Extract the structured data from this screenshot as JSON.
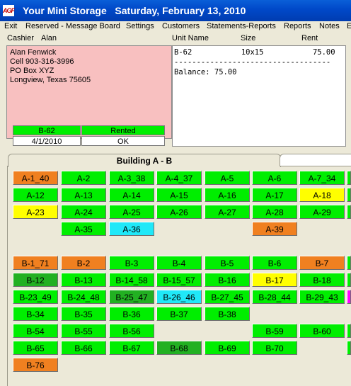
{
  "window": {
    "icon_text": "AGF",
    "title": "Your Mini Storage   Saturday, February 13, 2010"
  },
  "menu": [
    "Exit",
    "Reserved - Message Board",
    "Settings",
    "Customers",
    "Statements-Reports",
    "Reports",
    "Notes",
    "E"
  ],
  "header": {
    "cashier_label": "Cashier",
    "cashier_name": "Alan",
    "unit_name_label": "Unit Name",
    "size_label": "Size",
    "rent_label": "Rent"
  },
  "customer": {
    "name": "Alan Fenwick",
    "phone": "Cell  903-316-3996",
    "address1": "PO Box XYZ",
    "address2": "Longview, Texas  75605"
  },
  "status": {
    "unit": "B-62",
    "state": "Rented",
    "date": "4/1/2010",
    "result": "OK"
  },
  "receipt": {
    "line1": "B-62           10x15           75.00",
    "separator": "-----------------------------------",
    "balance": "Balance: 75.00"
  },
  "tabs": {
    "active": "Building A - B"
  },
  "colors": {
    "green": "#00ee00",
    "dark_green": "#22b022",
    "orange": "#f08020",
    "yellow": "#ffff00",
    "cyan": "#20e8f8",
    "magenta": "#ff00ff"
  },
  "units": [
    {
      "label": "A-1_40",
      "color": "orange"
    },
    {
      "label": "A-2",
      "color": "green"
    },
    {
      "label": "A-3_38",
      "color": "green"
    },
    {
      "label": "A-4_37",
      "color": "green"
    },
    {
      "label": "A-5",
      "color": "green"
    },
    {
      "label": "A-6",
      "color": "green"
    },
    {
      "label": "A-7_34",
      "color": "green"
    },
    {
      "label": "",
      "color": "green"
    },
    {
      "label": "A-12",
      "color": "green"
    },
    {
      "label": "A-13",
      "color": "green"
    },
    {
      "label": "A-14",
      "color": "green"
    },
    {
      "label": "A-15",
      "color": "green"
    },
    {
      "label": "A-16",
      "color": "green"
    },
    {
      "label": "A-17",
      "color": "green"
    },
    {
      "label": "A-18",
      "color": "yellow"
    },
    {
      "label": "",
      "color": "green"
    },
    {
      "label": "A-23",
      "color": "yellow"
    },
    {
      "label": "A-24",
      "color": "green"
    },
    {
      "label": "A-25",
      "color": "green"
    },
    {
      "label": "A-26",
      "color": "green"
    },
    {
      "label": "A-27",
      "color": "green"
    },
    {
      "label": "A-28",
      "color": "green"
    },
    {
      "label": "A-29",
      "color": "green"
    },
    {
      "label": "",
      "color": "green"
    },
    {
      "label": "A-35",
      "color": "green"
    },
    {
      "label": "A-36",
      "color": "cyan"
    },
    {
      "label": "A-39",
      "color": "orange"
    },
    {
      "label": "B-1_71",
      "color": "orange"
    },
    {
      "label": "B-2",
      "color": "orange"
    },
    {
      "label": "B-3",
      "color": "green"
    },
    {
      "label": "B-4",
      "color": "green"
    },
    {
      "label": "B-5",
      "color": "green"
    },
    {
      "label": "B-6",
      "color": "green"
    },
    {
      "label": "B-7",
      "color": "orange"
    },
    {
      "label": "",
      "color": "green"
    },
    {
      "label": "B-12",
      "color": "dark_green"
    },
    {
      "label": "B-13",
      "color": "green"
    },
    {
      "label": "B-14_58",
      "color": "green"
    },
    {
      "label": "B-15_57",
      "color": "green"
    },
    {
      "label": "B-16",
      "color": "green"
    },
    {
      "label": "B-17",
      "color": "yellow"
    },
    {
      "label": "B-18",
      "color": "green"
    },
    {
      "label": "",
      "color": "green"
    },
    {
      "label": "B-23_49",
      "color": "green"
    },
    {
      "label": "B-24_48",
      "color": "green"
    },
    {
      "label": "B-25_47",
      "color": "dark_green"
    },
    {
      "label": "B-26_46",
      "color": "cyan"
    },
    {
      "label": "B-27_45",
      "color": "green"
    },
    {
      "label": "B-28_44",
      "color": "green"
    },
    {
      "label": "B-29_43",
      "color": "green"
    },
    {
      "label": "",
      "color": "magenta"
    },
    {
      "label": "B-34",
      "color": "green"
    },
    {
      "label": "B-35",
      "color": "green"
    },
    {
      "label": "B-36",
      "color": "green"
    },
    {
      "label": "B-37",
      "color": "green"
    },
    {
      "label": "B-38",
      "color": "green"
    },
    {
      "label": "B-54",
      "color": "green"
    },
    {
      "label": "B-55",
      "color": "green"
    },
    {
      "label": "B-56",
      "color": "green"
    },
    {
      "label": "B-59",
      "color": "green"
    },
    {
      "label": "B-60",
      "color": "green"
    },
    {
      "label": "",
      "color": "green"
    },
    {
      "label": "B-65",
      "color": "green"
    },
    {
      "label": "B-66",
      "color": "green"
    },
    {
      "label": "B-67",
      "color": "green"
    },
    {
      "label": "B-68",
      "color": "dark_green"
    },
    {
      "label": "B-69",
      "color": "green"
    },
    {
      "label": "B-70",
      "color": "green"
    },
    {
      "label": "",
      "color": "green"
    },
    {
      "label": "B-76",
      "color": "orange"
    }
  ]
}
